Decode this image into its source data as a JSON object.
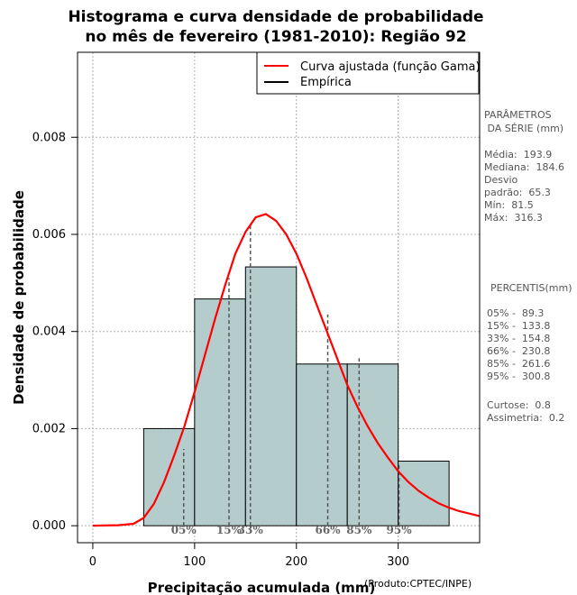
{
  "chart_data": {
    "type": "bar",
    "title_line1": "Histograma e curva densidade de probabilidade",
    "title_line2": "no mês de fevereiro (1981-2010): Região 92",
    "xlabel": "Precipitação acumulada (mm)",
    "ylabel": "Densidade de probabilidade",
    "credit": "(Produto:CPTEC/INPE)",
    "xlim": [
      -15,
      380
    ],
    "ylim": [
      -0.00035,
      0.00975
    ],
    "x_ticks": [
      {
        "value": 0,
        "label": "0"
      },
      {
        "value": 100,
        "label": "100"
      },
      {
        "value": 200,
        "label": "200"
      },
      {
        "value": 300,
        "label": "300"
      }
    ],
    "y_ticks": [
      {
        "value": 0.0,
        "label": "0.000"
      },
      {
        "value": 0.002,
        "label": "0.002"
      },
      {
        "value": 0.004,
        "label": "0.004"
      },
      {
        "value": 0.006,
        "label": "0.006"
      },
      {
        "value": 0.008,
        "label": "0.008"
      }
    ],
    "grid": true,
    "bins": [
      {
        "start": 50,
        "end": 100,
        "density": 0.002
      },
      {
        "start": 100,
        "end": 150,
        "density": 0.00467
      },
      {
        "start": 150,
        "end": 200,
        "density": 0.00533
      },
      {
        "start": 200,
        "end": 250,
        "density": 0.00333
      },
      {
        "start": 250,
        "end": 300,
        "density": 0.00333
      },
      {
        "start": 300,
        "end": 350,
        "density": 0.00133
      }
    ],
    "bar_color": "#b4cccc",
    "curve_color": "#ff0000",
    "gamma_curve": {
      "name": "Curva ajustada (função Gama)",
      "x": [
        0,
        25,
        40,
        50,
        60,
        70,
        80,
        90,
        100,
        110,
        120,
        130,
        140,
        150,
        160,
        170,
        180,
        190,
        200,
        210,
        220,
        230,
        240,
        250,
        260,
        270,
        280,
        290,
        300,
        310,
        320,
        330,
        340,
        350,
        360,
        370,
        380
      ],
      "y": [
        0.0,
        1e-05,
        4e-05,
        0.00016,
        0.00045,
        0.0009,
        0.00145,
        0.00205,
        0.00275,
        0.0035,
        0.00425,
        0.00495,
        0.0056,
        0.00605,
        0.00635,
        0.00642,
        0.00628,
        0.006,
        0.0056,
        0.0051,
        0.00455,
        0.004,
        0.00345,
        0.0029,
        0.00245,
        0.00205,
        0.0017,
        0.0014,
        0.00112,
        0.0009,
        0.00072,
        0.00058,
        0.00046,
        0.00037,
        0.0003,
        0.00025,
        0.0002
      ]
    },
    "legend": [
      {
        "label": "Curva ajustada (função Gama)",
        "color": "#ff0000"
      },
      {
        "label": "Empírica",
        "color": "#000000"
      }
    ],
    "legend_position": "top-right",
    "percentiles": [
      {
        "label": "05%",
        "value": 89.3,
        "density": 0.00158
      },
      {
        "label": "15%",
        "value": 133.8,
        "density": 0.0051
      },
      {
        "label": "33%",
        "value": 154.8,
        "density": 0.00618
      },
      {
        "label": "66%",
        "value": 230.8,
        "density": 0.00435
      },
      {
        "label": "85%",
        "value": 261.6,
        "density": 0.00345
      },
      {
        "label": "95%",
        "value": 300.8,
        "density": 0.00125
      }
    ]
  },
  "side_panel": {
    "params_title_1": "PARÂMETROS",
    "params_title_2": " DA SÉRIE (mm)",
    "media": "Média:  193.9",
    "mediana": "Mediana:  184.6",
    "desvio_1": "Desvio",
    "desvio_2": "padrão:  65.3",
    "min": "Mín:  81.5",
    "max": "Máx:  316.3",
    "percentis_title": "PERCENTIS(mm)",
    "p05": "05% -  89.3",
    "p15": "15% -  133.8",
    "p33": "33% -  154.8",
    "p66": "66% -  230.8",
    "p85": "85% -  261.6",
    "p95": "95% -  300.8",
    "curtose": "Curtose:  0.8",
    "assimetria": "Assimetria:  0.2"
  }
}
